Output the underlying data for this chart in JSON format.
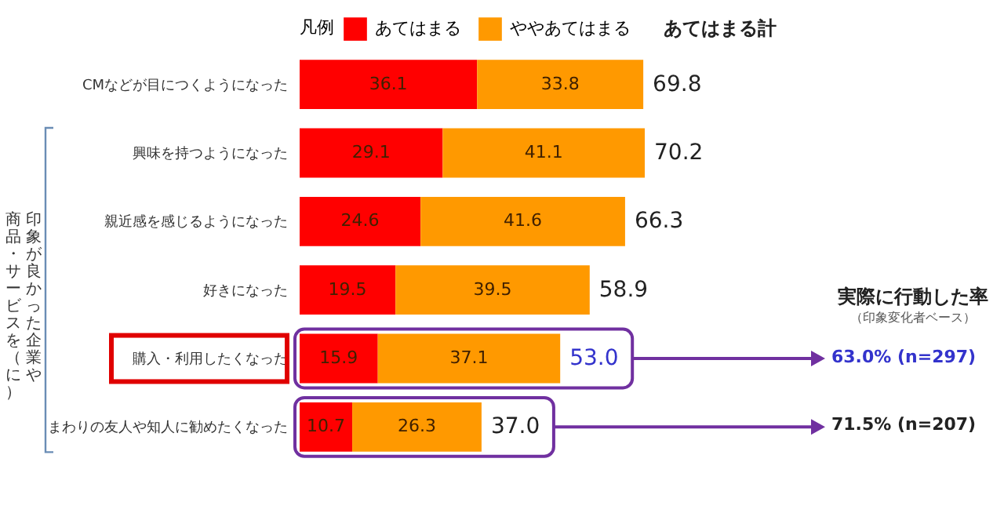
{
  "chart_data": {
    "type": "bar",
    "orientation": "horizontal",
    "stacked": true,
    "data_labels": true,
    "legend": "top",
    "legend_title": "凡例",
    "categories": [
      "CMなどが目につくようになった",
      "興味を持つようになった",
      "親近感を感じるようになった",
      "好きになった",
      "購入・利用したくなった",
      "まわりの友人や知人に勧めたくなった"
    ],
    "series": [
      {
        "name": "あてはまる",
        "color": "#ff0000",
        "values": [
          36.1,
          29.1,
          24.6,
          19.5,
          15.9,
          10.7
        ]
      },
      {
        "name": "ややあてはまる",
        "color": "#ff9900",
        "values": [
          33.8,
          41.1,
          41.6,
          39.5,
          37.1,
          26.3
        ]
      }
    ],
    "totals": [
      "69.8",
      "70.2",
      "66.3",
      "58.9",
      "53.0",
      "37.0"
    ],
    "annotations": [
      "あてはまる計",
      "印象が良かった企業や",
      "実際に行動した率",
      "（印象変化者ベース）",
      "63.0% (n=297)",
      "71.5% (n=207)",
      "商品・サービスを（に）"
    ]
  }
}
